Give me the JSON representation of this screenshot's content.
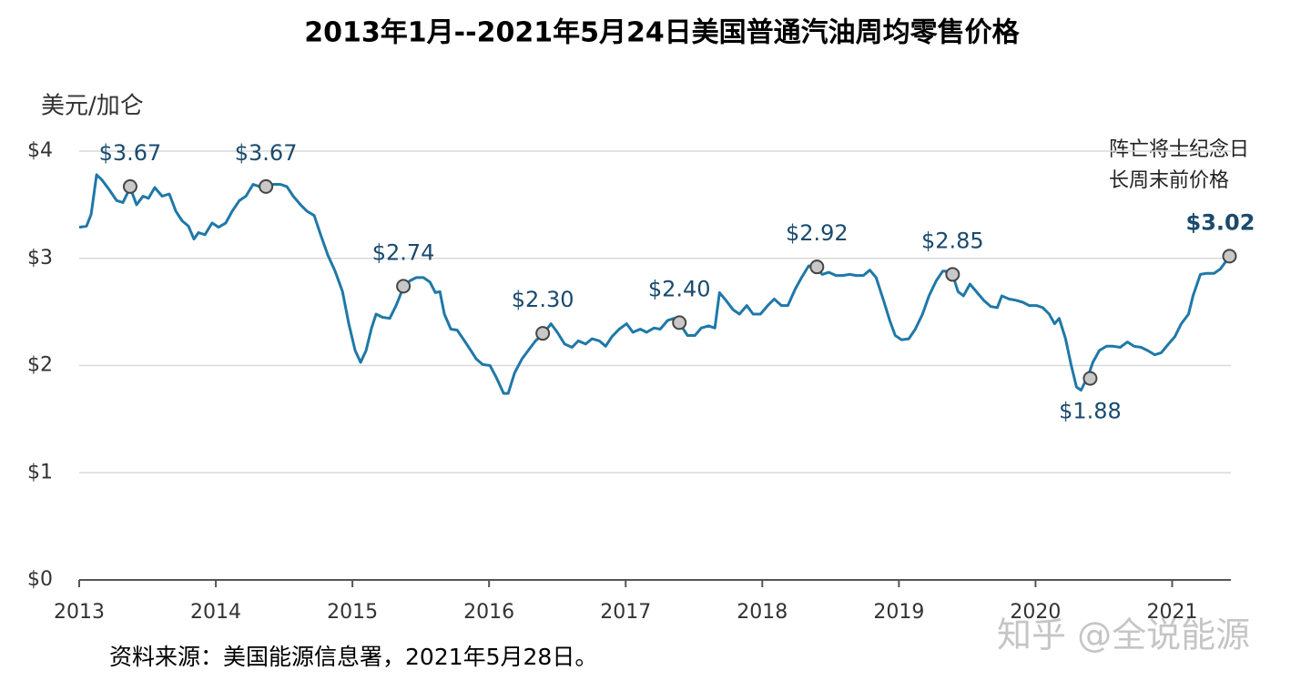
{
  "chart_data": {
    "type": "line",
    "title": "2013年1月--2021年5月24日美国普通汽油周均零售价格",
    "y_axis_label": "美元/加仑",
    "annotation": [
      "阵亡将士纪念日",
      "长周末前价格"
    ],
    "source": "资料来源：美国能源信息署，2021年5月28日。",
    "watermark": "知乎 @全说能源",
    "color": "#1f78a8",
    "grid": true,
    "xlim": [
      2013,
      2021.43
    ],
    "xticks": [
      2013,
      2014,
      2015,
      2016,
      2017,
      2018,
      2019,
      2020,
      2021
    ],
    "ylim": [
      0,
      4
    ],
    "yticks": [
      {
        "value": 0,
        "label": "$0"
      },
      {
        "value": 1,
        "label": "$1"
      },
      {
        "value": 2,
        "label": "$2"
      },
      {
        "value": 3,
        "label": "$3"
      },
      {
        "value": 4,
        "label": "$4"
      }
    ],
    "x": [
      2013.0,
      2013.053,
      2013.087,
      2013.127,
      2013.167,
      2013.22,
      2013.273,
      2013.32,
      2013.373,
      2013.42,
      2013.467,
      2013.507,
      2013.553,
      2013.607,
      2013.66,
      2013.707,
      2013.753,
      2013.8,
      2013.84,
      2013.873,
      2013.92,
      2013.973,
      2014.02,
      2014.073,
      2014.12,
      2014.173,
      2014.22,
      2014.273,
      2014.32,
      2014.367,
      2014.42,
      2014.473,
      2014.52,
      2014.567,
      2014.62,
      2014.667,
      2014.72,
      2014.767,
      2014.82,
      2014.873,
      2014.927,
      2014.973,
      2015.02,
      2015.06,
      2015.1,
      2015.14,
      2015.173,
      2015.22,
      2015.273,
      2015.32,
      2015.373,
      2015.42,
      2015.467,
      2015.52,
      2015.567,
      2015.607,
      2015.64,
      2015.673,
      2015.72,
      2015.767,
      2015.82,
      2015.867,
      2015.907,
      2015.953,
      2016.007,
      2016.053,
      2016.107,
      2016.14,
      2016.187,
      2016.24,
      2016.287,
      2016.34,
      2016.393,
      2016.453,
      2016.5,
      2016.553,
      2016.607,
      2016.653,
      2016.707,
      2016.753,
      2016.807,
      2016.853,
      2016.9,
      2016.953,
      2017.007,
      2017.053,
      2017.107,
      2017.153,
      2017.207,
      2017.253,
      2017.307,
      2017.353,
      2017.407,
      2017.453,
      2017.507,
      2017.553,
      2017.607,
      2017.653,
      2017.687,
      2017.733,
      2017.787,
      2017.833,
      2017.887,
      2017.933,
      2017.987,
      2018.04,
      2018.087,
      2018.14,
      2018.187,
      2018.24,
      2018.287,
      2018.34,
      2018.387,
      2018.44,
      2018.487,
      2018.54,
      2018.587,
      2018.64,
      2018.687,
      2018.74,
      2018.787,
      2018.833,
      2018.887,
      2018.933,
      2018.973,
      2019.02,
      2019.073,
      2019.12,
      2019.173,
      2019.22,
      2019.273,
      2019.32,
      2019.367,
      2019.4,
      2019.433,
      2019.473,
      2019.52,
      2019.573,
      2019.62,
      2019.673,
      2019.72,
      2019.753,
      2019.807,
      2019.853,
      2019.907,
      2019.953,
      2020.007,
      2020.053,
      2020.1,
      2020.14,
      2020.173,
      2020.22,
      2020.26,
      2020.3,
      2020.333,
      2020.387,
      2020.42,
      2020.467,
      2020.52,
      2020.567,
      2020.62,
      2020.673,
      2020.72,
      2020.773,
      2020.82,
      2020.873,
      2020.92,
      2020.973,
      2021.02,
      2021.067,
      2021.12,
      2021.153,
      2021.207,
      2021.253,
      2021.307,
      2021.353,
      2021.387,
      2021.42
    ],
    "values": [
      3.29,
      3.3,
      3.41,
      3.78,
      3.73,
      3.64,
      3.54,
      3.52,
      3.66,
      3.5,
      3.58,
      3.56,
      3.66,
      3.58,
      3.6,
      3.44,
      3.35,
      3.3,
      3.18,
      3.24,
      3.22,
      3.33,
      3.29,
      3.33,
      3.44,
      3.54,
      3.58,
      3.69,
      3.67,
      3.65,
      3.69,
      3.69,
      3.67,
      3.58,
      3.5,
      3.44,
      3.4,
      3.22,
      3.03,
      2.88,
      2.69,
      2.39,
      2.14,
      2.03,
      2.14,
      2.35,
      2.48,
      2.45,
      2.44,
      2.56,
      2.73,
      2.79,
      2.82,
      2.82,
      2.78,
      2.68,
      2.69,
      2.48,
      2.34,
      2.33,
      2.23,
      2.14,
      2.06,
      2.01,
      2.0,
      1.89,
      1.74,
      1.74,
      1.93,
      2.06,
      2.14,
      2.23,
      2.29,
      2.39,
      2.31,
      2.2,
      2.17,
      2.23,
      2.2,
      2.25,
      2.23,
      2.18,
      2.27,
      2.34,
      2.39,
      2.31,
      2.34,
      2.31,
      2.35,
      2.34,
      2.42,
      2.44,
      2.37,
      2.28,
      2.28,
      2.35,
      2.37,
      2.35,
      2.68,
      2.61,
      2.52,
      2.48,
      2.56,
      2.48,
      2.48,
      2.56,
      2.62,
      2.56,
      2.56,
      2.71,
      2.82,
      2.93,
      2.91,
      2.85,
      2.87,
      2.84,
      2.84,
      2.85,
      2.84,
      2.84,
      2.89,
      2.82,
      2.61,
      2.42,
      2.28,
      2.24,
      2.25,
      2.34,
      2.48,
      2.65,
      2.79,
      2.88,
      2.88,
      2.82,
      2.69,
      2.65,
      2.76,
      2.68,
      2.61,
      2.55,
      2.54,
      2.65,
      2.62,
      2.61,
      2.59,
      2.56,
      2.56,
      2.54,
      2.48,
      2.39,
      2.44,
      2.25,
      2.01,
      1.8,
      1.77,
      1.91,
      2.03,
      2.14,
      2.18,
      2.18,
      2.17,
      2.22,
      2.18,
      2.17,
      2.14,
      2.1,
      2.12,
      2.2,
      2.27,
      2.39,
      2.48,
      2.65,
      2.85,
      2.86,
      2.86,
      2.9,
      2.96,
      3.01
    ],
    "highlights": {
      "x": [
        2013.373,
        2014.367,
        2015.373,
        2016.393,
        2017.393,
        2018.4,
        2019.393,
        2020.4,
        2021.42
      ],
      "values": [
        3.67,
        3.67,
        2.74,
        2.3,
        2.4,
        2.92,
        2.85,
        1.88,
        3.02
      ],
      "value_labels": [
        "$3.67",
        "$3.67",
        "$2.74",
        "$2.30",
        "$2.40",
        "$2.92",
        "$2.85",
        "$1.88",
        "$3.02"
      ]
    }
  }
}
